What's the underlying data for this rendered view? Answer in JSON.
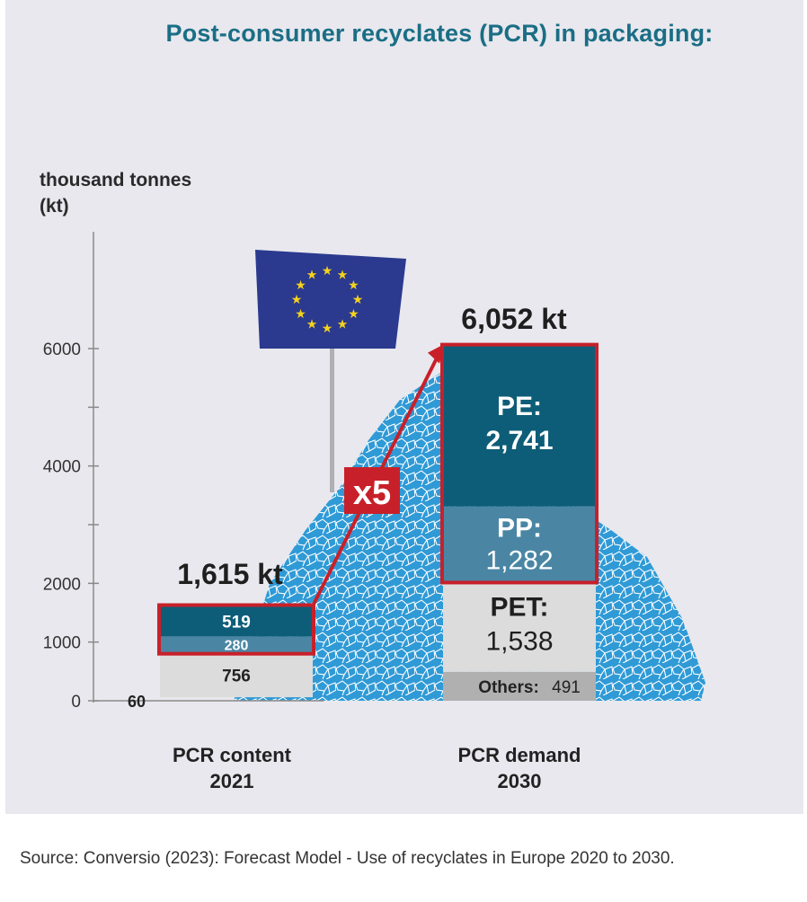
{
  "title": "Post-consumer recyclates (PCR) in packaging:",
  "unit_label": [
    "thousand tonnes",
    "(kt)"
  ],
  "source": "Source: Conversio (2023): Forecast Model - Use of recyclates in Europe 2020 to 2030.",
  "colors": {
    "title": "#1a6e85",
    "pe": "#0e5d78",
    "pp": "#4a86a4",
    "pet": "#dcdcdc",
    "others": "#b0b0b0",
    "highlight": "#c8202a",
    "pile": "#2f9ad6",
    "flag": "#2b3a8f",
    "stars": "#f6d21b"
  },
  "icons": [
    "eu-flag-icon",
    "plastic-flakes-pile-icon"
  ],
  "chart_data": {
    "type": "bar",
    "stacked": true,
    "ylim": [
      0,
      7000
    ],
    "yticks": [
      0,
      1000,
      2000,
      4000,
      6000
    ],
    "grid": false,
    "categories": [
      {
        "label": "PCR content",
        "sub": "2021",
        "total_label": "1,615 kt",
        "total": 1615
      },
      {
        "label": "PCR demand",
        "sub": "2030",
        "total_label": "6,052 kt",
        "total": 6052
      }
    ],
    "segments": [
      [
        {
          "key": "others",
          "value": 60,
          "label": "60"
        },
        {
          "key": "pet",
          "value": 756,
          "label": "756"
        },
        {
          "key": "pp",
          "value": 280,
          "label": "280"
        },
        {
          "key": "pe",
          "value": 519,
          "label": "519"
        }
      ],
      [
        {
          "key": "others",
          "value": 491,
          "label": "491",
          "name": "Others:"
        },
        {
          "key": "pet",
          "value": 1538,
          "label": "1,538",
          "name": "PET:"
        },
        {
          "key": "pp",
          "value": 1282,
          "label": "1,282",
          "name": "PP:"
        },
        {
          "key": "pe",
          "value": 2741,
          "label": "2,741",
          "name": "PE:"
        }
      ]
    ],
    "annotation": "x5"
  }
}
